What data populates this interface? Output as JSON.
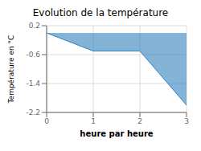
{
  "chart_data": {
    "type": "area",
    "title": "Evolution de la température",
    "ylabel": "Température en °C",
    "xlabel": "heure par heure",
    "x": [
      0,
      1,
      2,
      3
    ],
    "values": [
      0.0,
      -0.5,
      -0.5,
      -2.0
    ],
    "baseline": 0.0,
    "xlim": [
      0,
      3
    ],
    "ylim": [
      -2.2,
      0.2
    ],
    "xticks": [
      0,
      1,
      2,
      3
    ],
    "yticks": [
      0.2,
      -0.6,
      -1.4,
      -2.2
    ],
    "grid": true
  }
}
